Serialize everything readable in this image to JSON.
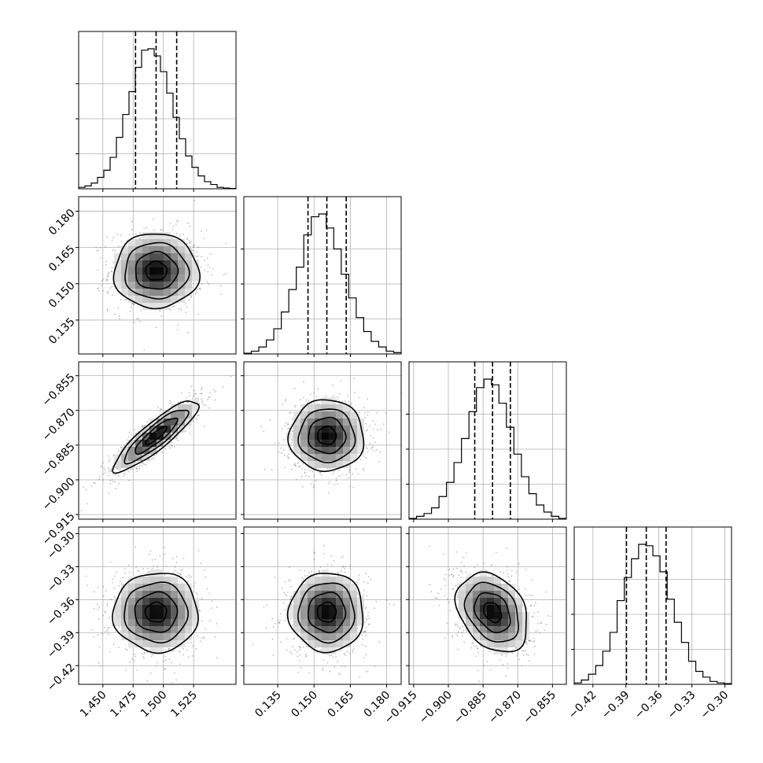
{
  "chart_data": {
    "type": "corner",
    "n_params": 4,
    "grid": true,
    "axes": [
      {
        "range": [
          1.43,
          1.56
        ],
        "ticks": [
          1.45,
          1.475,
          1.5,
          1.525
        ],
        "tick_labels": [
          "1.450",
          "1.475",
          "1.500",
          "1.525"
        ]
      },
      {
        "range": [
          0.121,
          0.186
        ],
        "ticks": [
          0.135,
          0.15,
          0.165,
          0.18
        ],
        "tick_labels": [
          "0.135",
          "0.150",
          "0.165",
          "0.180"
        ]
      },
      {
        "range": [
          -0.917,
          -0.849
        ],
        "ticks": [
          -0.915,
          -0.9,
          -0.885,
          -0.87,
          -0.855
        ],
        "tick_labels": [
          "−0.915",
          "−0.900",
          "−0.885",
          "−0.870",
          "−0.855"
        ]
      },
      {
        "range": [
          -0.437,
          -0.294
        ],
        "ticks": [
          -0.42,
          -0.39,
          -0.36,
          -0.33,
          -0.3
        ],
        "tick_labels": [
          "−0.42",
          "−0.39",
          "−0.36",
          "−0.33",
          "−0.30"
        ]
      }
    ],
    "histograms": [
      {
        "param": 0,
        "bin_range": [
          1.43,
          1.56
        ],
        "counts": [
          1,
          2,
          4,
          8,
          13,
          22,
          36,
          52,
          68,
          85,
          97,
          98,
          93,
          82,
          67,
          50,
          35,
          23,
          15,
          9,
          5,
          3,
          1,
          0.5,
          0.2
        ],
        "quantiles": [
          1.477,
          1.494,
          1.511
        ]
      },
      {
        "param": 1,
        "bin_range": [
          0.121,
          0.186
        ],
        "counts": [
          0.5,
          2,
          5,
          10,
          18,
          30,
          46,
          62,
          85,
          98,
          100,
          90,
          75,
          57,
          40,
          26,
          16,
          9,
          5,
          2,
          1
        ],
        "quantiles": [
          0.1475,
          0.1553,
          0.1633
        ]
      },
      {
        "param": 2,
        "bin_range": [
          -0.917,
          -0.849
        ],
        "counts": [
          0.5,
          2,
          4,
          8,
          16,
          26,
          40,
          57,
          76,
          93,
          99,
          95,
          82,
          65,
          46,
          30,
          18,
          10,
          5,
          2,
          0.5
        ],
        "quantiles": [
          -0.8886,
          -0.8809,
          -0.8732
        ]
      },
      {
        "param": 3,
        "bin_range": [
          -0.437,
          -0.294
        ],
        "counts": [
          1,
          3,
          7,
          13,
          23,
          36,
          58,
          74,
          87,
          97,
          96,
          89,
          78,
          59,
          43,
          29,
          16,
          9,
          5,
          2,
          1,
          0.5
        ],
        "quantiles": [
          -0.3895,
          -0.3715,
          -0.3535
        ]
      }
    ],
    "pairs": [
      {
        "x_param": 0,
        "y_param": 1,
        "mean": [
          1.494,
          0.1553
        ],
        "std": [
          0.0175,
          0.0077
        ],
        "corr": 0.0
      },
      {
        "x_param": 0,
        "y_param": 2,
        "mean": [
          1.494,
          -0.8809
        ],
        "std": [
          0.0175,
          0.0077
        ],
        "corr": 0.88
      },
      {
        "x_param": 1,
        "y_param": 2,
        "mean": [
          0.1553,
          -0.8809
        ],
        "std": [
          0.0077,
          0.0077
        ],
        "corr": 0.0
      },
      {
        "x_param": 0,
        "y_param": 3,
        "mean": [
          1.494,
          -0.3715
        ],
        "std": [
          0.0175,
          0.018
        ],
        "corr": 0.0
      },
      {
        "x_param": 1,
        "y_param": 3,
        "mean": [
          0.1553,
          -0.3715
        ],
        "std": [
          0.0077,
          0.018
        ],
        "corr": 0.0
      },
      {
        "x_param": 2,
        "y_param": 3,
        "mean": [
          -0.8809,
          -0.3715
        ],
        "std": [
          0.0077,
          0.018
        ],
        "corr": -0.3
      }
    ],
    "contour_levels_sigma": [
      0.5,
      1.0,
      1.5,
      2.0
    ],
    "colors": {
      "line": "#000000",
      "grid": "#b0b0b0",
      "points": "#6a6a6a",
      "density_max": "#000000"
    }
  }
}
